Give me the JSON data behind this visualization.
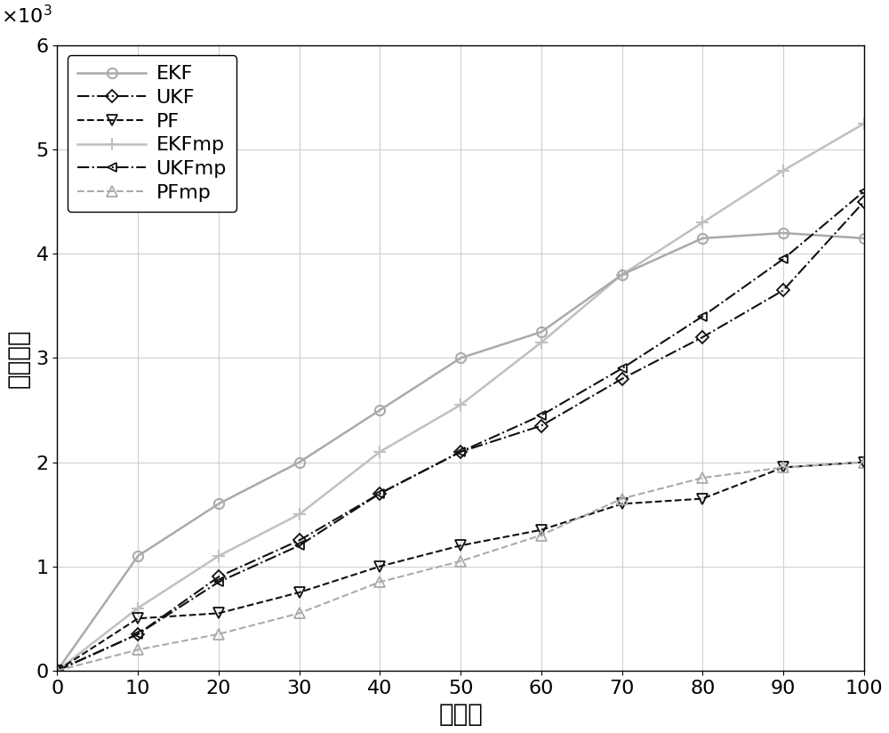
{
  "x": [
    0,
    10,
    20,
    30,
    40,
    50,
    60,
    70,
    80,
    90,
    100
  ],
  "EKF": [
    0,
    1100,
    1600,
    2000,
    2500,
    3000,
    3250,
    3800,
    4150,
    4200,
    4150
  ],
  "UKF": [
    0,
    350,
    900,
    1250,
    1700,
    2100,
    2350,
    2800,
    3200,
    3650,
    4500
  ],
  "PF": [
    0,
    500,
    550,
    750,
    1000,
    1200,
    1350,
    1600,
    1650,
    1950,
    2000
  ],
  "EKFmp": [
    0,
    600,
    1100,
    1500,
    2100,
    2550,
    3150,
    3800,
    4300,
    4800,
    5250
  ],
  "UKFmp": [
    0,
    350,
    850,
    1200,
    1700,
    2100,
    2450,
    2900,
    3400,
    3950,
    4600
  ],
  "PFmp": [
    0,
    200,
    350,
    550,
    850,
    1050,
    1300,
    1650,
    1850,
    1950,
    2000
  ],
  "EKF_color": "#aaaaaa",
  "UKF_color": "#111111",
  "PF_color": "#111111",
  "EKFmp_color": "#c0c0c0",
  "UKFmp_color": "#111111",
  "PFmp_color": "#aaaaaa",
  "xlabel": "时隔数",
  "ylabel": "均方误差",
  "xlim": [
    0,
    100
  ],
  "ylim": [
    0,
    6000
  ],
  "xticks": [
    0,
    10,
    20,
    30,
    40,
    50,
    60,
    70,
    80,
    90,
    100
  ],
  "yticks": [
    0,
    1000,
    2000,
    3000,
    4000,
    5000,
    6000
  ],
  "legend_loc": "upper left",
  "legend_fontsize": 16,
  "tick_fontsize": 16,
  "label_fontsize": 20
}
